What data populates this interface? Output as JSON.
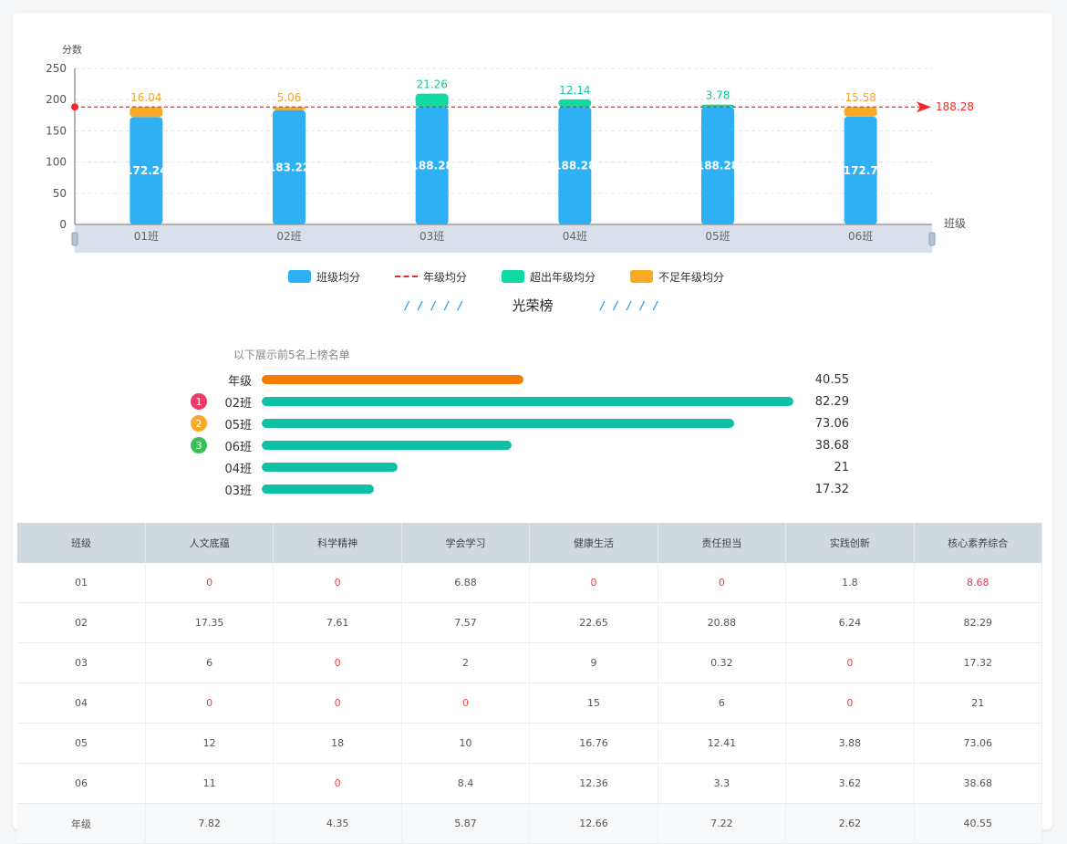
{
  "chart_data": {
    "type": "bar",
    "stacked": true,
    "ylabel": "分数",
    "xlabel": "班级",
    "ylim": [
      0,
      250
    ],
    "yticks": [
      0,
      50,
      100,
      150,
      200,
      250
    ],
    "categories": [
      "01班",
      "02班",
      "03班",
      "04班",
      "05班",
      "06班"
    ],
    "class_avg": [
      172.24,
      183.22,
      188.28,
      188.28,
      188.28,
      172.7
    ],
    "above_values": [
      0,
      0,
      21.26,
      12.14,
      3.78,
      0
    ],
    "below_values": [
      16.04,
      5.06,
      0,
      0,
      0,
      15.58
    ],
    "class_avg_labels": [
      "172.24",
      "183.22",
      "188.28",
      "188.28",
      "188.28",
      "172.7"
    ],
    "top_labels": [
      "16.04",
      "5.06",
      "21.26",
      "12.14",
      "3.78",
      "15.58"
    ],
    "top_label_kind": [
      "below",
      "below",
      "above",
      "above",
      "above",
      "below"
    ],
    "grade_avg": 188.28,
    "grade_avg_label": "188.28",
    "grid": true,
    "legend_position": "bottom",
    "series": [
      {
        "name": "班级均分",
        "color": "#2fb0f5"
      },
      {
        "name": "年级均分",
        "color": "#f02a2a"
      },
      {
        "name": "超出年级均分",
        "color": "#10d9a4"
      },
      {
        "name": "不足年级均分",
        "color": "#f9a926"
      }
    ]
  },
  "honor": {
    "title": "光荣榜",
    "slashes": "/ / / / /",
    "hint": "以下展示前5名上榜名单",
    "max": 82.29,
    "rows": [
      {
        "badge": "",
        "label": "年级",
        "value": 40.55,
        "value_text": "40.55",
        "color": "#f57c00"
      },
      {
        "badge": "1",
        "badge_color": "#f03b66",
        "label": "02班",
        "value": 82.29,
        "value_text": "82.29",
        "color": "#0fbfa6"
      },
      {
        "badge": "2",
        "badge_color": "#f9a926",
        "label": "05班",
        "value": 73.06,
        "value_text": "73.06",
        "color": "#0fbfa6"
      },
      {
        "badge": "3",
        "badge_color": "#3cbf5a",
        "label": "06班",
        "value": 38.68,
        "value_text": "38.68",
        "color": "#0fbfa6"
      },
      {
        "badge": "",
        "label": "04班",
        "value": 21,
        "value_text": "21",
        "color": "#0fbfa6"
      },
      {
        "badge": "",
        "label": "03班",
        "value": 17.32,
        "value_text": "17.32",
        "color": "#0fbfa6"
      }
    ]
  },
  "table": {
    "headers": [
      "班级",
      "人文底蕴",
      "科学精神",
      "学会学习",
      "健康生活",
      "责任担当",
      "实践创新",
      "核心素养综合"
    ],
    "rows": [
      [
        "01",
        "0",
        "0",
        "6.88",
        "0",
        "0",
        "1.8",
        "8.68"
      ],
      [
        "02",
        "17.35",
        "7.61",
        "7.57",
        "22.65",
        "20.88",
        "6.24",
        "82.29"
      ],
      [
        "03",
        "6",
        "0",
        "2",
        "9",
        "0.32",
        "0",
        "17.32"
      ],
      [
        "04",
        "0",
        "0",
        "0",
        "15",
        "6",
        "0",
        "21"
      ],
      [
        "05",
        "12",
        "18",
        "10",
        "16.76",
        "12.41",
        "3.88",
        "73.06"
      ],
      [
        "06",
        "11",
        "0",
        "8.4",
        "12.36",
        "3.3",
        "3.62",
        "38.68"
      ],
      [
        "年级",
        "7.82",
        "4.35",
        "5.87",
        "12.66",
        "7.22",
        "2.62",
        "40.55"
      ]
    ]
  }
}
